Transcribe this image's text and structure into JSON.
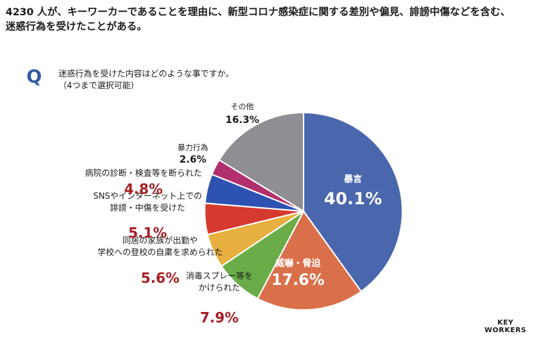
{
  "header": {
    "line1": "4230 人が、キーワーカーであることを理由に、新型コロナ感染症に関する差別や偏見、誹謗中傷などを含む、",
    "line2": "迷惑行為を受けたことがある。"
  },
  "question": {
    "mark": "Q",
    "line1": "迷惑行為を受けた内容はどのような事ですか。",
    "line2": "（4つまで選択可能）"
  },
  "brand": {
    "line1": "KEY",
    "line2": "WORKERS"
  },
  "chart_data": {
    "type": "pie",
    "unit": "%",
    "slices": [
      {
        "label": [
          "暴言"
        ],
        "value": 40.1,
        "display": "40.1%",
        "color": "#4a67ad"
      },
      {
        "label": [
          "威嚇・脅迫"
        ],
        "value": 17.6,
        "display": "17.6%",
        "color": "#d9704a"
      },
      {
        "label": [
          "消毒スプレー等を",
          "かけられた"
        ],
        "value": 7.9,
        "display": "7.9%",
        "color": "#6aac47"
      },
      {
        "label": [
          "同居の家族が出勤や",
          "学校への登校の自粛を求められた"
        ],
        "value": 5.6,
        "display": "5.6%",
        "color": "#e8b040"
      },
      {
        "label": [
          "SNSやインターネット上での",
          "誹謗・中傷を受けた"
        ],
        "value": 5.1,
        "display": "5.1%",
        "color": "#d63a2f"
      },
      {
        "label": [
          "病院の診断・検査等を断られた"
        ],
        "value": 4.8,
        "display": "4.8%",
        "color": "#2d52b2"
      },
      {
        "label": [
          "暴力行為"
        ],
        "value": 2.6,
        "display": "2.6%",
        "color": "#b2306e"
      },
      {
        "label": [
          "その他"
        ],
        "value": 16.3,
        "display": "16.3%",
        "color": "#8e8e94"
      }
    ]
  }
}
